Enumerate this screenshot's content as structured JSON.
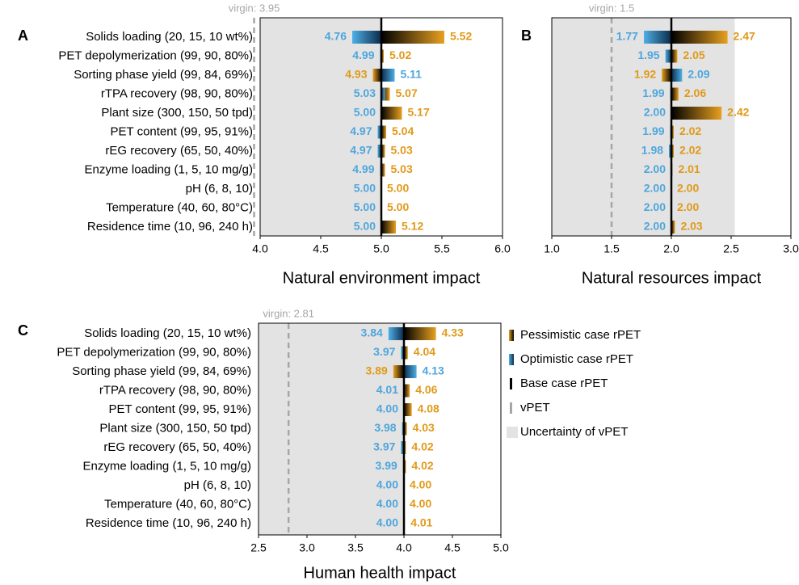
{
  "chart_data": [
    {
      "type": "tornado",
      "panel": "A",
      "xlabel": "Natural environment impact",
      "categories": [
        "Solids loading (20, 15, 10 wt%)",
        "PET depolymerization (99, 90, 80%)",
        "Sorting phase yield (99, 84, 69%)",
        "rTPA recovery (98, 90, 80%)",
        "Plant size (300, 150, 50 tpd)",
        "PET content (99, 95, 91%)",
        "rEG recovery (65, 50, 40%)",
        "Enzyme loading (1, 5, 10 mg/g)",
        "pH (6, 8, 10)",
        "Temperature (40, 60, 80°C)",
        "Residence time (10, 96, 240 h)"
      ],
      "series": [
        {
          "color": "#e09a1a",
          "values": [
            5.52,
            5.02,
            4.93,
            5.07,
            5.17,
            5.04,
            5.03,
            5.03,
            5.0,
            5.0,
            5.12
          ],
          "value_labels": [
            "5.52",
            "5.02",
            "4.93",
            "5.07",
            "5.17",
            "5.04",
            "5.03",
            "5.03",
            "5.00",
            "5.00",
            "5.12"
          ]
        },
        {
          "color": "#4ea6dc",
          "values": [
            4.76,
            4.99,
            5.11,
            5.03,
            5.0,
            4.97,
            4.97,
            4.99,
            5.0,
            5.0,
            5.0
          ],
          "value_labels": [
            "4.76",
            "4.99",
            "5.11",
            "5.03",
            "5.00",
            "4.97",
            "4.97",
            "4.99",
            "5.00",
            "5.00",
            "5.00"
          ]
        }
      ],
      "base": 5.0,
      "virgin": {
        "value": 3.95,
        "label": "virgin: 3.95"
      },
      "uncertainty": [
        4.0,
        5.0
      ],
      "xlim": [
        4.0,
        6.0
      ],
      "xticks": [
        {
          "value": 4,
          "label": "4.0"
        },
        4.5,
        {
          "value": 5,
          "label": "5.0"
        },
        5.5,
        {
          "value": 6,
          "label": "6.0"
        }
      ]
    },
    {
      "type": "tornado",
      "panel": "B",
      "xlabel": "Natural resources impact",
      "series": [
        {
          "color": "#e09a1a",
          "values": [
            2.47,
            2.05,
            1.92,
            2.06,
            2.42,
            2.02,
            2.02,
            2.01,
            2.0,
            2.0,
            2.03
          ],
          "value_labels": [
            "2.47",
            "2.05",
            "1.92",
            "2.06",
            "2.42",
            "2.02",
            "2.02",
            "2.01",
            "2.00",
            "2.00",
            "2.03"
          ]
        },
        {
          "color": "#4ea6dc",
          "values": [
            1.77,
            1.95,
            2.09,
            1.99,
            2.0,
            1.99,
            1.98,
            2.0,
            2.0,
            2.0,
            2.0
          ],
          "value_labels": [
            "1.77",
            "1.95",
            "2.09",
            "1.99",
            "2.00",
            "1.99",
            "1.98",
            "2.00",
            "2.00",
            "2.00",
            "2.00"
          ]
        }
      ],
      "base": 2.0,
      "virgin": {
        "value": 1.5,
        "label": "virgin: 1.5"
      },
      "uncertainty": [
        1.0,
        2.53
      ],
      "xlim": [
        1.0,
        3.0
      ],
      "xticks": [
        {
          "value": 1,
          "label": "1.0"
        },
        1.5,
        {
          "value": 2,
          "label": "2.0"
        },
        2.5,
        {
          "value": 3,
          "label": "3.0"
        }
      ]
    },
    {
      "type": "tornado",
      "panel": "C",
      "xlabel": "Human health impact",
      "categories": [
        "Solids loading (20, 15, 10 wt%)",
        "PET depolymerization (99, 90, 80%)",
        "Sorting phase yield (99, 84, 69%)",
        "rTPA recovery (98, 90, 80%)",
        "PET content (99, 95, 91%)",
        "Plant size (300, 150, 50 tpd)",
        "rEG recovery (65, 50, 40%)",
        "Enzyme loading (1, 5, 10 mg/g)",
        "pH (6, 8, 10)",
        "Temperature (40, 60, 80°C)",
        "Residence time (10, 96, 240 h)"
      ],
      "series": [
        {
          "color": "#e09a1a",
          "values": [
            4.33,
            4.04,
            3.89,
            4.06,
            4.08,
            4.03,
            4.02,
            4.02,
            4.0,
            4.0,
            4.01
          ],
          "value_labels": [
            "4.33",
            "4.04",
            "3.89",
            "4.06",
            "4.08",
            "4.03",
            "4.02",
            "4.02",
            "4.00",
            "4.00",
            "4.01"
          ]
        },
        {
          "color": "#4ea6dc",
          "values": [
            3.84,
            3.97,
            4.13,
            4.01,
            4.0,
            3.98,
            3.97,
            3.99,
            4.0,
            4.0,
            4.0
          ],
          "value_labels": [
            "3.84",
            "3.97",
            "4.13",
            "4.01",
            "4.00",
            "3.98",
            "3.97",
            "3.99",
            "4.00",
            "4.00",
            "4.00"
          ]
        }
      ],
      "base": 4.0,
      "virgin": {
        "value": 2.81,
        "label": "virgin: 2.81"
      },
      "uncertainty": [
        2.5,
        4.0
      ],
      "xlim": [
        2.5,
        5.0
      ],
      "xticks": [
        {
          "value": 2.5,
          "label": "2.5"
        },
        {
          "value": 3,
          "label": "3.0"
        },
        3.5,
        {
          "value": 4,
          "label": "4.0"
        },
        4.5,
        {
          "value": 5,
          "label": "5.0"
        }
      ]
    }
  ],
  "legend": [
    {
      "name": "Pessimistic case rPET",
      "color": "#e09a1a"
    },
    {
      "name": "Optimistic case rPET",
      "color": "#4ea6dc"
    },
    {
      "name": "Base case rPET",
      "color": "#000000"
    },
    {
      "name": "vPET",
      "color": "#a6a6a6"
    },
    {
      "name": "Uncertainty of vPET",
      "color": "#e3e3e3"
    }
  ]
}
